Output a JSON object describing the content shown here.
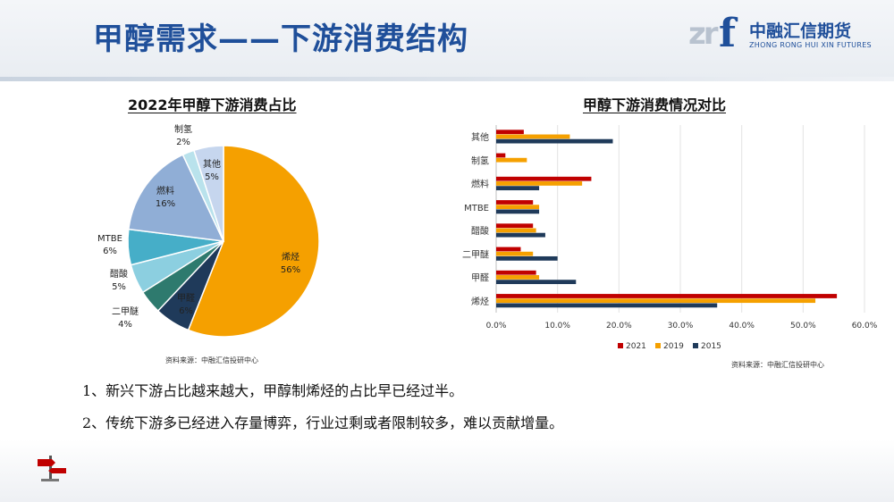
{
  "header": {
    "title": "甲醇需求——下游消费结构",
    "logo_cn": "中融汇信期货",
    "logo_en": "ZHONG RONG HUI XIN FUTURES",
    "logo_mark": "zr",
    "logo_letter": "f",
    "title_color": "#1f4f9a"
  },
  "pie_chart": {
    "title": "2022年甲醇下游消费占比",
    "source": "资料来源：中融汇信投研中心"
  },
  "bar_chart": {
    "title": "甲醇下游消费情况对比",
    "source": "资料来源：中融汇信投研中心"
  },
  "chart_data": [
    {
      "type": "pie",
      "title": "2022年甲醇下游消费占比",
      "slices": [
        {
          "label": "烯烃",
          "pct_label": "56%",
          "value": 56,
          "color": "#f5a000"
        },
        {
          "label": "甲醛",
          "pct_label": "6%",
          "value": 6,
          "color": "#1f3a5a"
        },
        {
          "label": "二甲醚",
          "pct_label": "4%",
          "value": 4,
          "color": "#2e7a6e"
        },
        {
          "label": "醋酸",
          "pct_label": "5%",
          "value": 5,
          "color": "#8ccfe0"
        },
        {
          "label": "MTBE",
          "pct_label": "6%",
          "value": 6,
          "color": "#46aec8"
        },
        {
          "label": "燃料",
          "pct_label": "16%",
          "value": 16,
          "color": "#90aed6"
        },
        {
          "label": "制氢",
          "pct_label": "2%",
          "value": 2,
          "color": "#b9e2ec"
        },
        {
          "label": "其他",
          "pct_label": "5%",
          "value": 5,
          "color": "#c6d6ee"
        }
      ]
    },
    {
      "type": "bar",
      "orientation": "horizontal",
      "title": "甲醇下游消费情况对比",
      "categories": [
        "其他",
        "制氢",
        "燃料",
        "MTBE",
        "醋酸",
        "二甲醚",
        "甲醛",
        "烯烃"
      ],
      "series": [
        {
          "name": "2021",
          "color": "#c00000",
          "values": [
            4.5,
            1.5,
            15.5,
            6.0,
            6.0,
            4.0,
            6.5,
            55.5
          ]
        },
        {
          "name": "2019",
          "color": "#f5a000",
          "values": [
            12.0,
            5.0,
            14.0,
            7.0,
            6.5,
            6.0,
            7.0,
            52.0
          ]
        },
        {
          "name": "2015",
          "color": "#1f3a5a",
          "values": [
            19.0,
            0,
            7.0,
            7.0,
            8.0,
            10.0,
            13.0,
            36.0
          ]
        }
      ],
      "xlim": [
        0,
        60
      ],
      "xticks": [
        "0.0%",
        "10.0%",
        "20.0%",
        "30.0%",
        "40.0%",
        "50.0%",
        "60.0%"
      ],
      "legend_position": "bottom",
      "grid": true
    }
  ],
  "bullets": [
    "1、新兴下游占比越来越大，甲醇制烯烃的占比早已经过半。",
    "2、传统下游多已经进入存量博弈，行业过剩或者限制较多，难以贡献增量。"
  ]
}
